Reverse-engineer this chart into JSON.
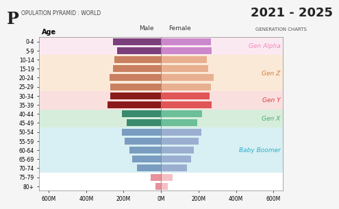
{
  "title_left_big": "P",
  "title_left_rest": "OPULATION PYRAMID : WORLD",
  "title_right_year": "2021 - 2025",
  "title_right_sub": "GENERATION CHARTS",
  "age_groups": [
    "80+",
    "75-79",
    "70-74",
    "65-69",
    "60-64",
    "55-59",
    "50-54",
    "45-49",
    "40-44",
    "35-39",
    "30-34",
    "25-29",
    "20-24",
    "15-19",
    "10-14",
    "5-9",
    "0-4"
  ],
  "male_values": [
    30,
    55,
    130,
    155,
    170,
    195,
    210,
    185,
    210,
    285,
    270,
    270,
    275,
    255,
    250,
    235,
    255
  ],
  "female_values": [
    35,
    60,
    140,
    160,
    175,
    200,
    215,
    195,
    220,
    270,
    260,
    265,
    280,
    250,
    245,
    270,
    265
  ],
  "male_colors": [
    "#e8919a",
    "#e8919a",
    "#7a9cc0",
    "#7a9cc0",
    "#7a9cc0",
    "#7a9cc0",
    "#7a9cc0",
    "#3a8a6e",
    "#3a8a6e",
    "#8b1a1a",
    "#8b1a1a",
    "#c98060",
    "#c98060",
    "#c98060",
    "#c98060",
    "#7b3f7b",
    "#7b3f7b"
  ],
  "female_colors": [
    "#f5c0c5",
    "#f5c0c5",
    "#9aafd0",
    "#9aafd0",
    "#9aafd0",
    "#9aafd0",
    "#9aafd0",
    "#6dbf99",
    "#6dbf99",
    "#e05555",
    "#e05555",
    "#e8b090",
    "#e8b090",
    "#e8b090",
    "#e8b090",
    "#cc88cc",
    "#cc88cc"
  ],
  "generation_bands": [
    {
      "name": "Baby Boomer",
      "ages": [
        "70-74",
        "65-69",
        "60-64",
        "55-59",
        "50-54"
      ],
      "color": "#aadde8",
      "alpha": 0.45
    },
    {
      "name": "Gen X",
      "ages": [
        "45-49",
        "40-44"
      ],
      "color": "#a8d8b0",
      "alpha": 0.45
    },
    {
      "name": "Gen Y",
      "ages": [
        "35-39",
        "30-34"
      ],
      "color": "#f5b8b8",
      "alpha": 0.45
    },
    {
      "name": "Gen Z",
      "ages": [
        "25-29",
        "20-24",
        "15-19",
        "10-14"
      ],
      "color": "#f5cfa8",
      "alpha": 0.45
    },
    {
      "name": "Gen Alpha",
      "ages": [
        "5-9",
        "0-4"
      ],
      "color": "#f8d0e0",
      "alpha": 0.45
    }
  ],
  "gen_label_colors": [
    "#2ab0c8",
    "#4aaa70",
    "#d84040",
    "#d88040",
    "#ee88bb"
  ],
  "xlim": 650,
  "xlabel_ticks": [
    -600,
    -400,
    -200,
    0,
    200,
    400,
    600
  ],
  "xlabel_labels": [
    "600M",
    "400M",
    "200M",
    "0M",
    "200M",
    "400M",
    "600M"
  ],
  "bg_color": "#f5f5f5",
  "plot_bg": "#ffffff"
}
